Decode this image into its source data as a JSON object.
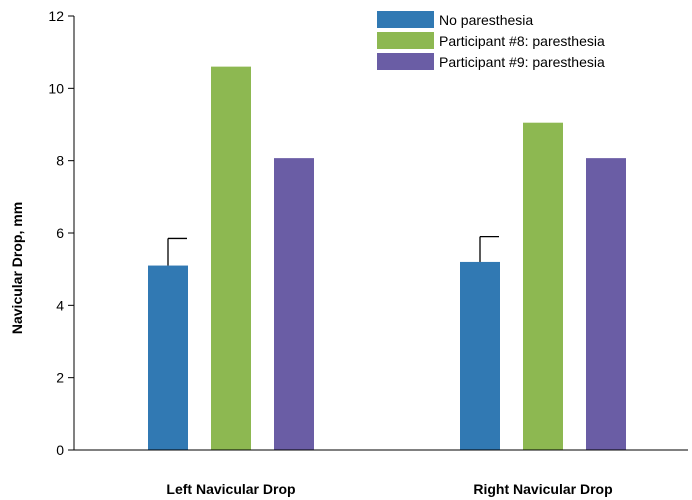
{
  "chart_data": {
    "type": "bar",
    "title": "",
    "xlabel": "",
    "ylabel": "Navicular Drop, mm",
    "ylim": [
      0,
      12
    ],
    "yticks": [
      "0",
      "2",
      "4",
      "6",
      "8",
      "10",
      "12"
    ],
    "categories": [
      "Left Navicular Drop",
      "Right Navicular Drop"
    ],
    "series": [
      {
        "name": "No paresthesia",
        "values": [
          5.1,
          5.2
        ],
        "error": [
          0.75,
          0.7
        ],
        "color": "#3179b3"
      },
      {
        "name": "Participant #8: paresthesia",
        "values": [
          10.6,
          9.05
        ],
        "color": "#8db851"
      },
      {
        "name": "Participant #9: paresthesia",
        "values": [
          8.07,
          8.07
        ],
        "color": "#6a5da5"
      }
    ],
    "legend_position": "top-right",
    "grid": false
  }
}
